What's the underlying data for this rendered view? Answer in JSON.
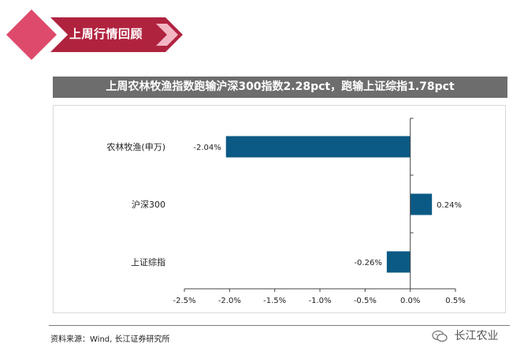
{
  "section": {
    "title": "上周行情回顾"
  },
  "headline": {
    "text": "上周农林牧渔指数跑输沪深300指数2.28pct，跑输上证综指1.78pct"
  },
  "chart_data": {
    "type": "bar",
    "orientation": "horizontal",
    "categories": [
      "农林牧渔(申万)",
      "沪深300",
      "上证综指"
    ],
    "values": [
      -2.04,
      0.24,
      -0.26
    ],
    "data_labels": [
      "-2.04%",
      "0.24%",
      "-0.26%"
    ],
    "xlim": [
      -2.5,
      0.5
    ],
    "x_ticks": [
      -2.5,
      -2.0,
      -1.5,
      -1.0,
      -0.5,
      0.0,
      0.5
    ],
    "x_tick_labels": [
      "-2.5%",
      "-2.0%",
      "-1.5%",
      "-1.0%",
      "-0.5%",
      "0.0%",
      "0.5%"
    ],
    "bar_color": "#0b5a85",
    "grid": false,
    "legend": "none"
  },
  "footer": {
    "source": "资料来源：Wind, 长江证券研究所",
    "brand": "长江农业",
    "brand_icon": "wechat-icon"
  },
  "colors": {
    "banner_dark": "#b0233f",
    "banner_light": "#df4a6c",
    "headline_bg": "#6d6d6d",
    "bar": "#0b5a85"
  }
}
